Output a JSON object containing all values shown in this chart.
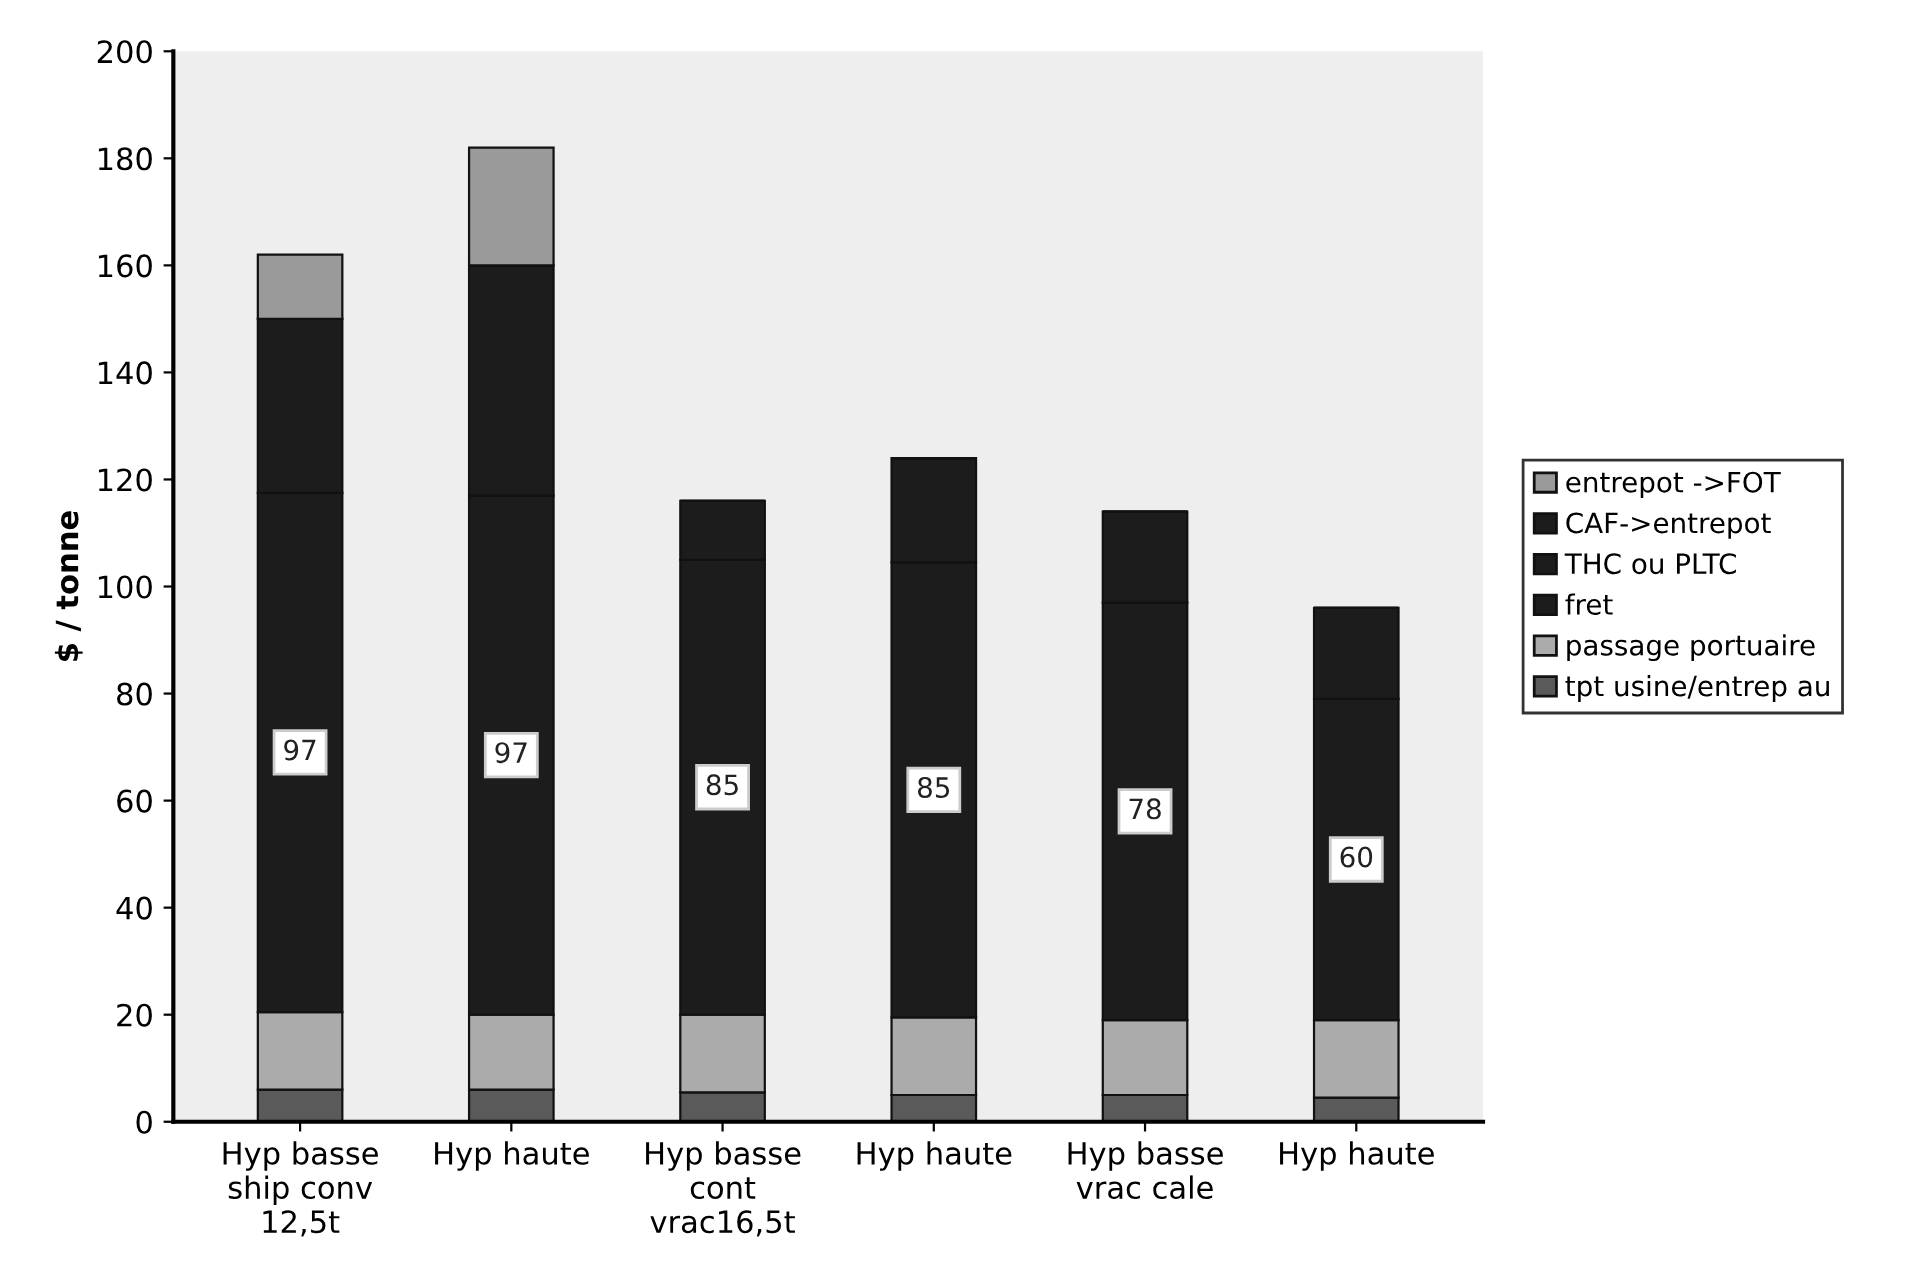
{
  "chart_data": {
    "type": "bar",
    "stacked": true,
    "ylabel": "$ / tonne",
    "categories": [
      "Hyp basse\nship conv\n12,5t",
      "Hyp haute",
      "Hyp basse\ncont\nvrac16,5t",
      "Hyp haute",
      "Hyp basse\nvrac cale",
      "Hyp haute"
    ],
    "series": [
      {
        "name": "tpt usine/entrep au",
        "color": "#5a5a5a",
        "values": [
          6,
          6,
          5.5,
          5,
          5,
          4.5
        ]
      },
      {
        "name": "passage portuaire",
        "color": "#ababab",
        "values": [
          14.5,
          14,
          14.5,
          14.5,
          14,
          14.5
        ]
      },
      {
        "name": "fret",
        "color": "#1c1c1c",
        "values": [
          97,
          97,
          85,
          85,
          78,
          60
        ],
        "value_labels": [
          "97",
          "97",
          "85",
          "85",
          "78",
          "60"
        ]
      },
      {
        "name": "THC ou PLTC",
        "color": "#1c1c1c",
        "values": [
          32.5,
          43,
          11,
          19.5,
          17,
          17
        ]
      },
      {
        "name": "CAF->entrepot",
        "color": "#1c1c1c",
        "values": [
          0,
          0,
          0,
          0,
          0,
          0
        ]
      },
      {
        "name": "entrepot ->FOT",
        "color": "#9a9a9a",
        "values": [
          12,
          22,
          0,
          0,
          0,
          0
        ]
      }
    ],
    "ylim": [
      0,
      200
    ],
    "yticks": [
      0,
      20,
      40,
      60,
      80,
      100,
      120,
      140,
      160,
      180,
      200
    ],
    "grid": false,
    "legend": "right"
  }
}
